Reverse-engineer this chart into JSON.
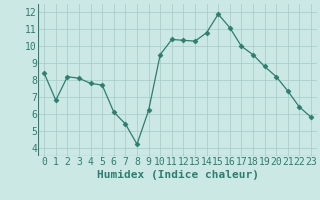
{
  "x": [
    0,
    1,
    2,
    3,
    4,
    5,
    6,
    7,
    8,
    9,
    10,
    11,
    12,
    13,
    14,
    15,
    16,
    17,
    18,
    19,
    20,
    21,
    22,
    23
  ],
  "y": [
    8.4,
    6.8,
    8.2,
    8.1,
    7.8,
    7.7,
    6.1,
    5.4,
    4.2,
    6.2,
    9.5,
    10.4,
    10.35,
    10.3,
    10.8,
    11.9,
    11.1,
    10.0,
    9.5,
    8.8,
    8.2,
    7.35,
    6.4,
    5.8
  ],
  "line_color": "#2e7d6e",
  "marker": "D",
  "marker_size": 2.5,
  "bg_color": "#cce8e4",
  "grid_color": "#aacfcb",
  "xlabel": "Humidex (Indice chaleur)",
  "ylim": [
    3.5,
    12.5
  ],
  "xlim": [
    -0.5,
    23.5
  ],
  "yticks": [
    4,
    5,
    6,
    7,
    8,
    9,
    10,
    11,
    12
  ],
  "xticks": [
    0,
    1,
    2,
    3,
    4,
    5,
    6,
    7,
    8,
    9,
    10,
    11,
    12,
    13,
    14,
    15,
    16,
    17,
    18,
    19,
    20,
    21,
    22,
    23
  ],
  "tick_color": "#2e7d6e",
  "label_color": "#2e7d6e",
  "xlabel_fontsize": 8,
  "tick_fontsize": 7
}
